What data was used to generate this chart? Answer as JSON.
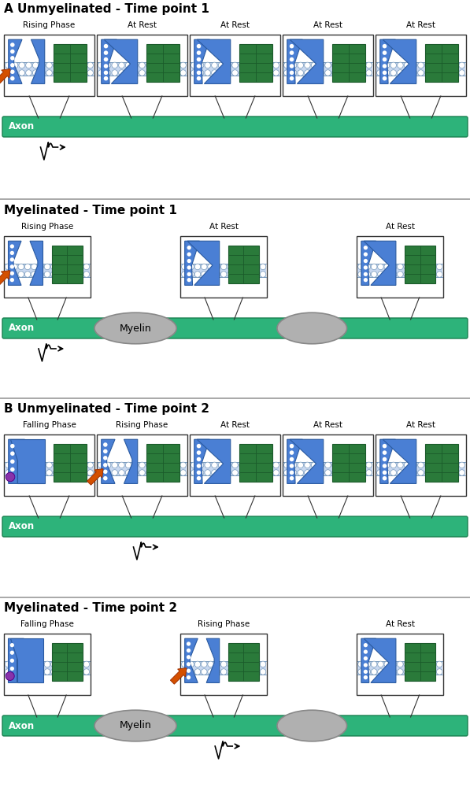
{
  "title_A": "A Unmyelinated - Time point 1",
  "title_B": "B Unmyelinated - Time point 2",
  "title_mye1": "Myelinated - Time point 1",
  "title_mye2": "Myelinated - Time point 2",
  "axon_color": "#2db37a",
  "axon_label": "Axon",
  "myelin_color": "#b0b0b0",
  "myelin_label": "Myelin",
  "membrane_color_light": "#c8d8f0",
  "membrane_color_circles": "#ddeeff",
  "channel_blue": "#4a7fd4",
  "channel_blue_dark": "#2a5aa0",
  "channel_blue_dots": "#6699ee",
  "channel_green": "#2a7a3a",
  "channel_green_dark": "#1a5a2a",
  "channel_green_mid": "#3a9a4a",
  "bg_color": "#ffffff",
  "border_color": "#333333",
  "arrow_orange": "#d45000",
  "arrow_orange_dark": "#a03000",
  "purple_color": "#8833aa",
  "divider_color": "#999999",
  "phases_unmye1": [
    "Rising Phase",
    "At Rest",
    "At Rest",
    "At Rest",
    "At Rest"
  ],
  "phases_unmye2": [
    "Falling Phase",
    "Rising Phase",
    "At Rest",
    "At Rest",
    "At Rest"
  ],
  "phases_mye1": [
    "Rising Phase",
    "At Rest",
    "At Rest"
  ],
  "phases_mye2": [
    "Falling Phase",
    "Rising Phase",
    "At Rest"
  ]
}
